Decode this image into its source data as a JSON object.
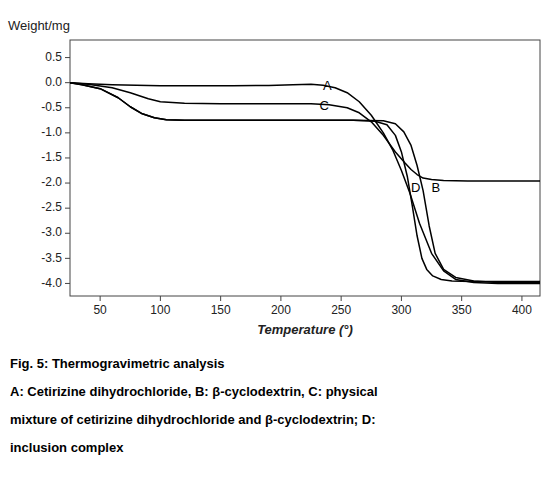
{
  "chart_data": {
    "type": "line",
    "x_label": "Temperature (°)",
    "y_label": "Weight/mg",
    "xlim": [
      25,
      415
    ],
    "ylim": [
      -4.25,
      0.85
    ],
    "xticks": [
      50,
      100,
      150,
      200,
      250,
      300,
      350,
      400
    ],
    "yticks": [
      0.5,
      {
        "value": 0.0,
        "label": "0.0"
      },
      -0.5,
      {
        "value": -1.0,
        "label": "-1.0"
      },
      -1.5,
      {
        "value": -2.0,
        "label": "-2.0"
      },
      -2.5,
      {
        "value": -3.0,
        "label": "-3.0"
      },
      -3.5,
      {
        "value": -4.0,
        "label": "-4.0"
      }
    ],
    "grid": false,
    "color": "#000000",
    "series": [
      {
        "x": [
          25,
          40,
          60,
          80,
          100,
          130,
          160,
          190,
          210,
          225,
          235,
          245,
          255,
          265,
          275,
          285,
          293,
          300,
          307,
          315,
          325,
          335,
          345,
          360,
          380,
          400,
          415
        ],
        "values": [
          0.0,
          -0.02,
          -0.04,
          -0.05,
          -0.06,
          -0.06,
          -0.06,
          -0.055,
          -0.04,
          -0.03,
          -0.05,
          -0.1,
          -0.2,
          -0.38,
          -0.65,
          -1.0,
          -1.35,
          -1.75,
          -2.2,
          -2.8,
          -3.4,
          -3.75,
          -3.92,
          -3.98,
          -4.0,
          -4.0,
          -4.0
        ]
      },
      {
        "x": [
          25,
          35,
          50,
          65,
          75,
          85,
          95,
          105,
          120,
          150,
          200,
          260,
          285,
          295,
          302,
          308,
          313,
          318,
          323,
          328,
          335,
          345,
          360,
          380,
          400,
          415
        ],
        "values": [
          0.0,
          -0.04,
          -0.12,
          -0.3,
          -0.48,
          -0.62,
          -0.7,
          -0.74,
          -0.75,
          -0.75,
          -0.75,
          -0.75,
          -0.76,
          -0.82,
          -0.98,
          -1.25,
          -1.65,
          -2.15,
          -2.85,
          -3.4,
          -3.72,
          -3.88,
          -3.95,
          -3.98,
          -3.98,
          -3.98
        ]
      },
      {
        "x": [
          25,
          40,
          60,
          75,
          90,
          100,
          120,
          150,
          200,
          225,
          240,
          255,
          265,
          275,
          285,
          295,
          303,
          308,
          313,
          318,
          325,
          335,
          355,
          380,
          400,
          415
        ],
        "values": [
          0.0,
          -0.03,
          -0.1,
          -0.2,
          -0.32,
          -0.38,
          -0.41,
          -0.42,
          -0.42,
          -0.42,
          -0.44,
          -0.5,
          -0.6,
          -0.78,
          -1.05,
          -1.38,
          -1.6,
          -1.73,
          -1.83,
          -1.9,
          -1.93,
          -1.95,
          -1.96,
          -1.96,
          -1.96,
          -1.96
        ]
      },
      {
        "x": [
          25,
          35,
          50,
          65,
          75,
          85,
          95,
          105,
          120,
          150,
          200,
          260,
          278,
          288,
          295,
          300,
          305,
          309,
          313,
          317,
          321,
          326,
          333,
          342,
          358,
          380,
          400,
          415
        ],
        "values": [
          0.0,
          -0.04,
          -0.12,
          -0.3,
          -0.48,
          -0.62,
          -0.7,
          -0.74,
          -0.75,
          -0.75,
          -0.75,
          -0.75,
          -0.77,
          -0.84,
          -1.05,
          -1.38,
          -1.88,
          -2.45,
          -3.05,
          -3.5,
          -3.72,
          -3.85,
          -3.92,
          -3.95,
          -3.96,
          -3.96,
          -3.96,
          -3.96
        ]
      }
    ],
    "annotations": [
      {
        "text": "A",
        "x": 235,
        "y": -0.07
      },
      {
        "text": "B",
        "x": 325,
        "y": -2.1
      },
      {
        "text": "C",
        "x": 232,
        "y": -0.47
      },
      {
        "text": "D",
        "x": 308,
        "y": -2.1
      }
    ],
    "caption": [
      "Fig. 5: Thermogravimetric analysis",
      "A: Cetirizine dihydrochloride, B: β-cyclodextrin, C: physical",
      "mixture of cetirizine dihydrochloride and β-cyclodextrin; D:",
      "inclusion complex"
    ]
  }
}
